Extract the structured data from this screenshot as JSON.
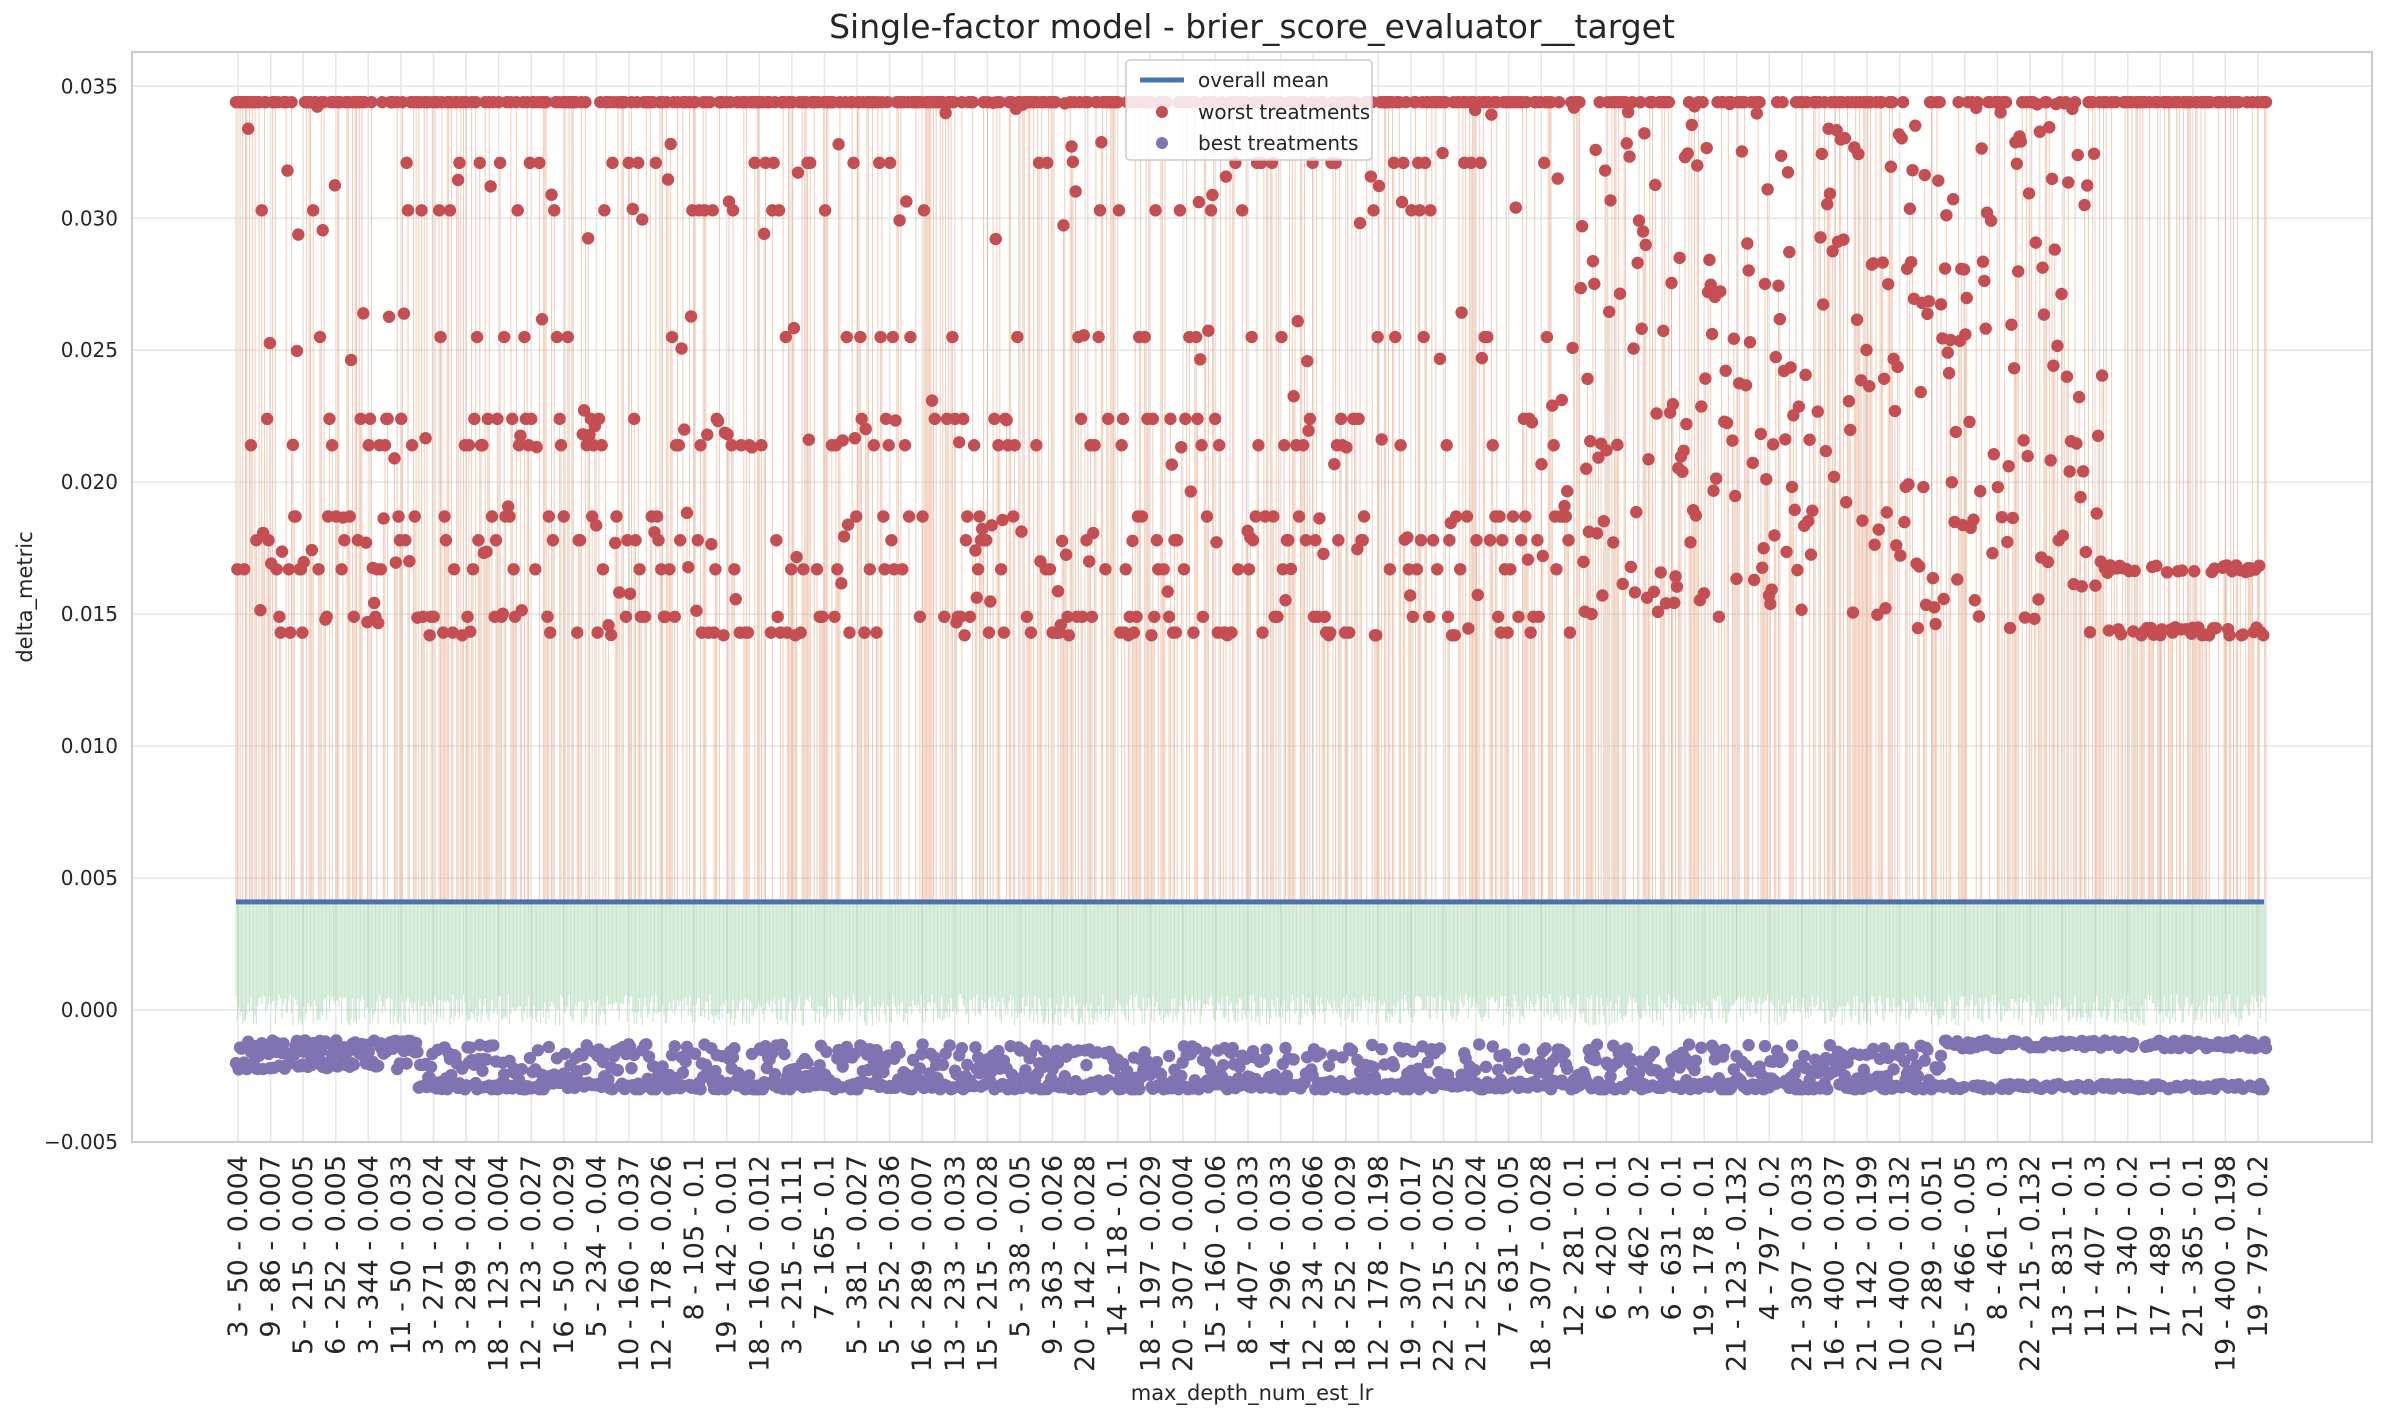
{
  "chart_data": {
    "type": "scatter",
    "title": "Single-factor model - brier_score_evaluator__target",
    "xlabel": "max_depth_num_est_lr",
    "ylabel": "delta_metric",
    "ylim": [
      -0.005,
      0.0363
    ],
    "yticks": [
      "−0.005",
      "0.000",
      "0.005",
      "0.010",
      "0.015",
      "0.020",
      "0.025",
      "0.030",
      "0.035"
    ],
    "ytick_values": [
      -0.005,
      0.0,
      0.005,
      0.01,
      0.015,
      0.02,
      0.025,
      0.03,
      0.035
    ],
    "overall_mean": 0.0041,
    "grid": true,
    "legend_position": "top-center",
    "legend": [
      "overall mean",
      "worst treatments",
      "best treatments"
    ],
    "colors": {
      "mean": "#4c72b0",
      "worst": "#c44e52",
      "best": "#8172b2",
      "worst_stem": "#e8a07e",
      "best_stem": "#8fcc9c",
      "grid": "#e6e6e6",
      "frame": "#cccccc"
    },
    "x_categories": [
      "3 - 50 - 0.004",
      "9 - 86 - 0.007",
      "5 - 215 - 0.005",
      "6 - 252 - 0.005",
      "3 - 344 - 0.004",
      "11 - 50 - 0.033",
      "3 - 271 - 0.024",
      "3 - 289 - 0.024",
      "18 - 123 - 0.004",
      "12 - 123 - 0.027",
      "16 - 50 - 0.029",
      "5 - 234 - 0.04",
      "10 - 160 - 0.037",
      "12 - 178 - 0.026",
      "8 - 105 - 0.1",
      "19 - 142 - 0.01",
      "18 - 160 - 0.012",
      "3 - 215 - 0.111",
      "7 - 165 - 0.1",
      "5 - 381 - 0.027",
      "5 - 252 - 0.036",
      "16 - 289 - 0.007",
      "13 - 233 - 0.033",
      "15 - 215 - 0.028",
      "5 - 338 - 0.05",
      "9 - 363 - 0.026",
      "20 - 142 - 0.028",
      "14 - 118 - 0.1",
      "18 - 197 - 0.029",
      "20 - 307 - 0.004",
      "15 - 160 - 0.06",
      "8 - 407 - 0.033",
      "14 - 296 - 0.033",
      "12 - 234 - 0.066",
      "18 - 252 - 0.029",
      "12 - 178 - 0.198",
      "19 - 307 - 0.017",
      "22 - 215 - 0.025",
      "21 - 252 - 0.024",
      "7 - 631 - 0.05",
      "18 - 307 - 0.028",
      "12 - 281 - 0.1",
      "6 - 420 - 0.1",
      "3 - 462 - 0.2",
      "6 - 631 - 0.1",
      "19 - 178 - 0.1",
      "21 - 123 - 0.132",
      "4 - 797 - 0.2",
      "21 - 307 - 0.033",
      "16 - 400 - 0.037",
      "21 - 142 - 0.199",
      "10 - 400 - 0.132",
      "20 - 289 - 0.051",
      "15 - 466 - 0.05",
      "8 - 461 - 0.3",
      "22 - 215 - 0.132",
      "13 - 831 - 0.1",
      "11 - 407 - 0.3",
      "17 - 340 - 0.2",
      "17 - 489 - 0.1",
      "21 - 365 - 0.1",
      "19 - 400 - 0.198",
      "19 - 797 - 0.2"
    ],
    "series": [
      {
        "name": "worst treatments",
        "levels": [
          0.0344,
          0.0321,
          0.0303,
          0.0255,
          0.0214,
          0.0224,
          0.0187,
          0.0178,
          0.0167,
          0.0149,
          0.0143
        ],
        "profile": "clustered-levels, dense at extremes"
      },
      {
        "name": "best treatments",
        "levels": [
          -0.0013,
          -0.0016,
          -0.0021,
          -0.0025,
          -0.0029
        ],
        "profile": "dense band between -0.001 and -0.003"
      }
    ]
  }
}
